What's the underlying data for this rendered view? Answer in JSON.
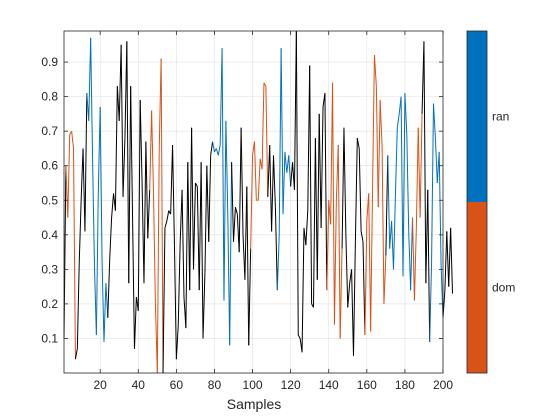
{
  "chart_data": {
    "type": "line",
    "title": "",
    "xlabel": "Samples",
    "ylabel": "",
    "xlim": [
      1,
      200
    ],
    "ylim": [
      0.0,
      0.99
    ],
    "x_ticks": [
      20,
      40,
      60,
      80,
      100,
      120,
      140,
      160,
      180,
      200
    ],
    "y_ticks": [
      0.1,
      0.2,
      0.3,
      0.4,
      0.5,
      0.6,
      0.7,
      0.8,
      0.9
    ],
    "grid": true,
    "colors": {
      "default": "#000000",
      "ran": "#0072BD",
      "dom": "#D95319"
    },
    "colorbar": {
      "labels": [
        "ran",
        "dom"
      ],
      "colors": [
        "#0072BD",
        "#D95319"
      ]
    },
    "series": [
      {
        "values": [
          0.1,
          0.6,
          0.45,
          0.69,
          0.7,
          0.65,
          0.04,
          0.07,
          0.32,
          0.5,
          0.65,
          0.41,
          0.81,
          0.73,
          0.97,
          0.62,
          0.31,
          0.11,
          0.52,
          0.77,
          0.32,
          0.09,
          0.26,
          0.16,
          0.33,
          0.45,
          0.52,
          0.47,
          0.83,
          0.73,
          0.95,
          0.51,
          0.68,
          0.96,
          0.26,
          0.83,
          0.45,
          0.07,
          0.22,
          0.18,
          0.79,
          0.55,
          0.26,
          0.67,
          0.39,
          0.53,
          0.76,
          0.52,
          0.2,
          0.0,
          0.65,
          0.91,
          0.0,
          0.42,
          0.44,
          0.47,
          0.46,
          0.66,
          0.37,
          0.04,
          0.14,
          0.38,
          0.53,
          0.22,
          0.13,
          0.61,
          0.24,
          0.71,
          0.3,
          0.55,
          0.54,
          0.24,
          0.61,
          0.1,
          0.29,
          0.6,
          0.38,
          0.63,
          0.67,
          0.64,
          0.65,
          0.63,
          0.66,
          0.94,
          0.21,
          0.73,
          0.46,
          0.08,
          0.61,
          0.38,
          0.48,
          0.46,
          0.35,
          0.71,
          0.4,
          0.27,
          0.54,
          0.08,
          0.36,
          0.63,
          0.67,
          0.5,
          0.5,
          0.62,
          0.59,
          0.84,
          0.83,
          0.51,
          0.66,
          0.41,
          0.63,
          0.48,
          0.24,
          0.4,
          0.94,
          0.46,
          0.64,
          0.58,
          0.63,
          0.54,
          0.61,
          0.53,
          0.99,
          0.11,
          0.1,
          0.06,
          0.42,
          0.37,
          0.47,
          0.89,
          0.2,
          0.19,
          0.68,
          0.27,
          0.75,
          0.42,
          0.77,
          0.81,
          0.24,
          0.5,
          0.43,
          0.84,
          0.14,
          0.5,
          0.66,
          0.1,
          0.36,
          0.71,
          0.4,
          0.19,
          0.26,
          0.3,
          0.05,
          0.38,
          0.68,
          0.65,
          0.41,
          0.38,
          0.11,
          0.44,
          0.52,
          0.12,
          0.53,
          0.92,
          0.83,
          0.48,
          0.79,
          0.66,
          0.2,
          0.34,
          0.63,
          0.36,
          0.44,
          0.3,
          0.51,
          0.71,
          0.75,
          0.8,
          0.28,
          0.81,
          0.69,
          0.41,
          0.24,
          0.45,
          0.21,
          0.42,
          0.71,
          0.45,
          0.75,
          0.96,
          0.26,
          0.53,
          0.09,
          0.32,
          0.78,
          0.68,
          0.55,
          0.64,
          0.31,
          0.16,
          0.24,
          0.41,
          0.25,
          0.42,
          0.23
        ],
        "color_segments": [
          {
            "from": 3,
            "to": 7,
            "group": "dom"
          },
          {
            "from": 14,
            "to": 24,
            "group": "ran"
          },
          {
            "from": 47,
            "to": 53,
            "group": "dom"
          },
          {
            "from": 80,
            "to": 89,
            "group": "ran"
          },
          {
            "from": 100,
            "to": 108,
            "group": "dom"
          },
          {
            "from": 114,
            "to": 120,
            "group": "ran"
          },
          {
            "from": 140,
            "to": 147,
            "group": "dom"
          },
          {
            "from": 160,
            "to": 170,
            "group": "dom"
          },
          {
            "from": 172,
            "to": 184,
            "group": "ran"
          },
          {
            "from": 185,
            "to": 189,
            "group": "dom"
          },
          {
            "from": 194,
            "to": 200,
            "group": "ran"
          }
        ]
      }
    ]
  }
}
